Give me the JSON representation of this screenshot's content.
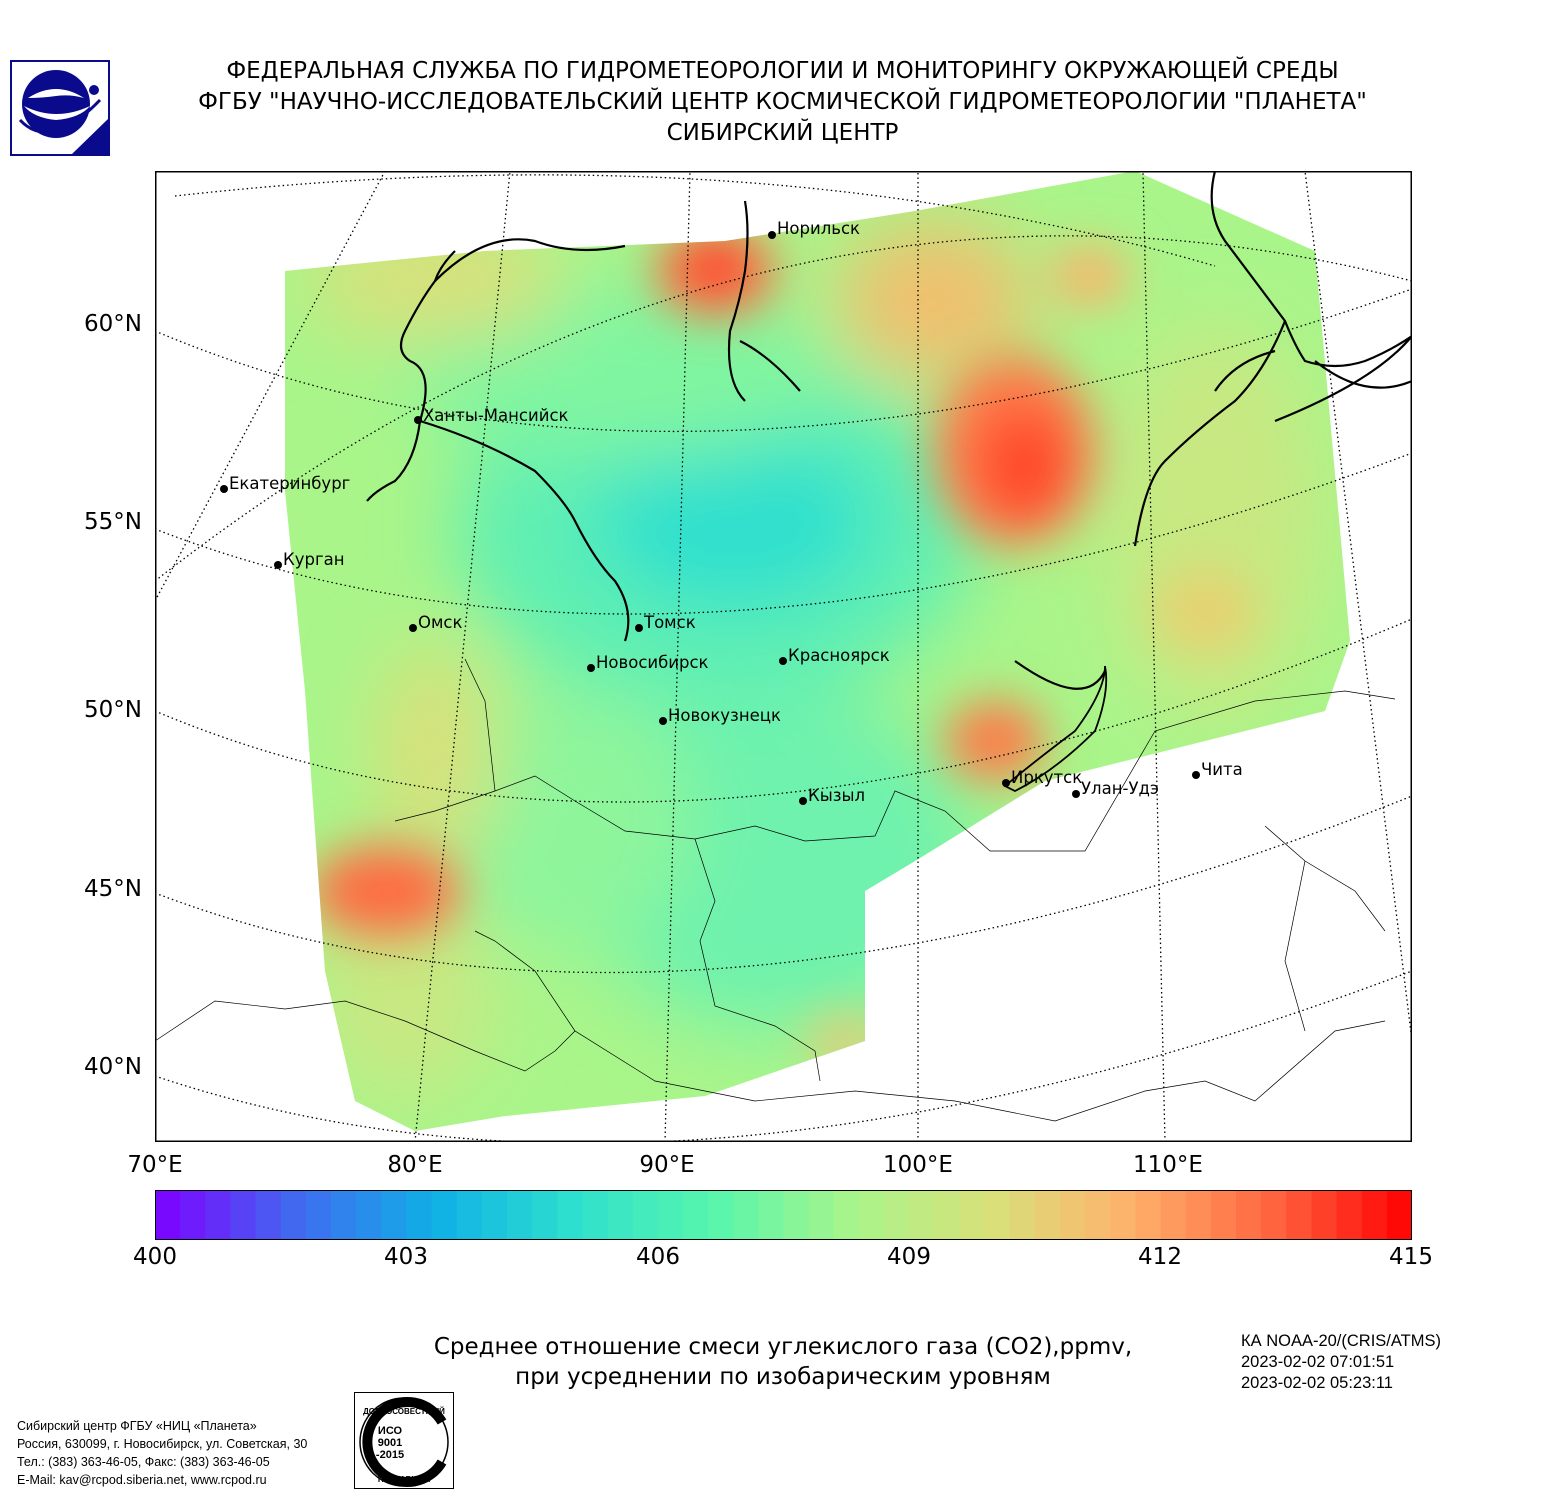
{
  "header": {
    "line1": "ФЕДЕРАЛЬНАЯ СЛУЖБА ПО ГИДРОМЕТЕОРОЛОГИИ И МОНИТОРИНГУ ОКРУЖАЮЩЕЙ СРЕДЫ",
    "line2": "ФГБУ \"НАУЧНО-ИССЛЕДОВАТЕЛЬСКИЙ ЦЕНТР КОСМИЧЕСКОЙ ГИДРОМЕТЕОРОЛОГИИ \"ПЛАНЕТА\"",
    "line3": "СИБИРСКИЙ ЦЕНТР"
  },
  "map": {
    "lon_labels": [
      "70°E",
      "80°E",
      "90°E",
      "100°E",
      "110°E"
    ],
    "lat_labels": [
      "60°N",
      "55°N",
      "50°N",
      "45°N",
      "40°N"
    ],
    "cities": [
      "Норильск",
      "Ханты-Мансийск",
      "Екатеринбург",
      "Курган",
      "Омск",
      "Томск",
      "Новосибирск",
      "Красноярск",
      "Новокузнецк",
      "Кызыл",
      "Иркутск",
      "Улан-Удэ",
      "Чита"
    ],
    "colors": {
      "land": "#000000",
      "grid": "#000000",
      "background": "#ffffff"
    }
  },
  "colorbar": {
    "min": 400,
    "max": 415,
    "ticks": [
      "400",
      "403",
      "406",
      "409",
      "412",
      "415"
    ],
    "colors": [
      "#7f00ff",
      "#4169f0",
      "#0fb0e6",
      "#2ee0cd",
      "#57f5ad",
      "#a9f58a",
      "#d9e07a",
      "#ffb06b",
      "#ff6540",
      "#ff0000"
    ]
  },
  "caption": {
    "line1": "Среднее отношение смеси углекислого газа (CO2),ppmv,",
    "line2": "при усреднении по изобарическим уровням"
  },
  "satellite": {
    "name": "КА NOAA-20/(CRIS/ATMS)",
    "time1": "2023-02-02 07:01:51",
    "time2": "2023-02-02 05:23:11"
  },
  "footer": {
    "line1": "Сибирский центр ФГБУ «НИЦ «Планета»",
    "line2": "Россия, 630099, г. Новосибирск, ул. Советская, 30",
    "line3": "Тел.: (383) 363-46-05, Факс: (383) 363-46-05",
    "line4": "E-Mail: kav@rcpod.siberia.net, www.rcpod.ru"
  },
  "iso_badge": {
    "top_text": "ДОБРОСОВЕСТНЫЙ",
    "center_text_1": "ИСО",
    "center_text_2": "9001",
    "center_text_3": "-2015",
    "bottom_text": "ПОСТАВЩИК"
  }
}
